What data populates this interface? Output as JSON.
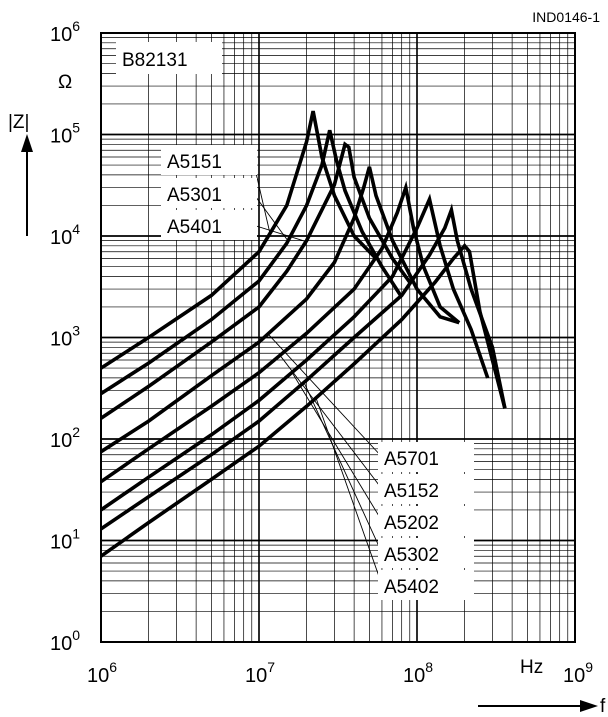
{
  "chart_data": {
    "type": "line",
    "reference": "IND0146-1",
    "product": "B82131",
    "xlabel": "f",
    "xunit": "Hz",
    "ylabel": "|Z|",
    "yunit": "Ω",
    "x_scale": "log",
    "y_scale": "log",
    "xlim": [
      1000000,
      1000000000
    ],
    "ylim": [
      1,
      1000000
    ],
    "x_ticks": [
      {
        "base": "10",
        "exp": "6",
        "value": 1000000
      },
      {
        "base": "10",
        "exp": "7",
        "value": 10000000
      },
      {
        "base": "10",
        "exp": "8",
        "value": 100000000
      },
      {
        "base": "10",
        "exp": "9",
        "value": 1000000000
      }
    ],
    "y_ticks": [
      {
        "base": "10",
        "exp": "0",
        "value": 1
      },
      {
        "base": "10",
        "exp": "1",
        "value": 10
      },
      {
        "base": "10",
        "exp": "2",
        "value": 100
      },
      {
        "base": "10",
        "exp": "3",
        "value": 1000
      },
      {
        "base": "10",
        "exp": "4",
        "value": 10000
      },
      {
        "base": "10",
        "exp": "5",
        "value": 100000
      },
      {
        "base": "10",
        "exp": "6",
        "value": 1000000
      }
    ],
    "grid": true,
    "series_color": "#000000",
    "series": [
      {
        "name": "A5151",
        "x": [
          1000000,
          2000000,
          5000000,
          10000000,
          15000000,
          18000000,
          20000000,
          22000000,
          25000000,
          30000000,
          40000000,
          55000000
        ],
        "y": [
          500,
          1000,
          2600,
          7000,
          20000,
          50000,
          85000,
          170000,
          60000,
          25000,
          10000,
          6000
        ]
      },
      {
        "name": "A5301",
        "x": [
          1000000,
          2000000,
          5000000,
          10000000,
          15000000,
          20000000,
          25000000,
          28000000,
          31000000,
          35000000,
          45000000,
          60000000,
          80000000
        ],
        "y": [
          280,
          560,
          1500,
          3600,
          8500,
          20000,
          50000,
          110000,
          55000,
          28000,
          11000,
          5000,
          2500
        ]
      },
      {
        "name": "A5401",
        "x": [
          1000000,
          2000000,
          5000000,
          10000000,
          15000000,
          20000000,
          30000000,
          35000000,
          37000000,
          40000000,
          50000000,
          70000000,
          90000000
        ],
        "y": [
          160,
          330,
          900,
          2000,
          4500,
          9000,
          32000,
          80000,
          75000,
          38000,
          15000,
          6000,
          3500
        ]
      },
      {
        "name": "A5701",
        "x": [
          1000000,
          2000000,
          5000000,
          10000000,
          20000000,
          30000000,
          40000000,
          46000000,
          50000000,
          55000000,
          70000000,
          100000000,
          140000000,
          185000000
        ],
        "y": [
          75,
          150,
          420,
          900,
          2400,
          5500,
          15000,
          30000,
          48000,
          25000,
          9000,
          3000,
          1600,
          1400
        ]
      },
      {
        "name": "A5152",
        "x": [
          1000000,
          2000000,
          5000000,
          10000000,
          20000000,
          40000000,
          60000000,
          75000000,
          85000000,
          95000000,
          110000000,
          140000000,
          185000000
        ],
        "y": [
          38,
          80,
          210,
          450,
          1100,
          3000,
          7500,
          17000,
          30000,
          12000,
          5000,
          2000,
          1400
        ]
      },
      {
        "name": "A5202",
        "x": [
          1000000,
          2000000,
          5000000,
          10000000,
          20000000,
          40000000,
          70000000,
          100000000,
          120000000,
          140000000,
          170000000,
          220000000,
          280000000
        ],
        "y": [
          20,
          42,
          110,
          240,
          600,
          1600,
          4000,
          12000,
          23000,
          8000,
          3000,
          1200,
          400
        ]
      },
      {
        "name": "A5302",
        "x": [
          1000000,
          2000000,
          5000000,
          10000000,
          20000000,
          40000000,
          80000000,
          120000000,
          150000000,
          165000000,
          180000000,
          220000000,
          300000000,
          360000000
        ],
        "y": [
          13,
          27,
          70,
          150,
          380,
          1000,
          2600,
          6500,
          12000,
          18000,
          9000,
          3000,
          800,
          200
        ]
      },
      {
        "name": "A5402",
        "x": [
          1000000,
          2000000,
          5000000,
          10000000,
          20000000,
          40000000,
          80000000,
          130000000,
          170000000,
          200000000,
          215000000,
          250000000,
          300000000,
          360000000
        ],
        "y": [
          7,
          15,
          40,
          85,
          210,
          550,
          1500,
          3500,
          6000,
          8000,
          7000,
          1800,
          600,
          200
        ]
      }
    ]
  }
}
